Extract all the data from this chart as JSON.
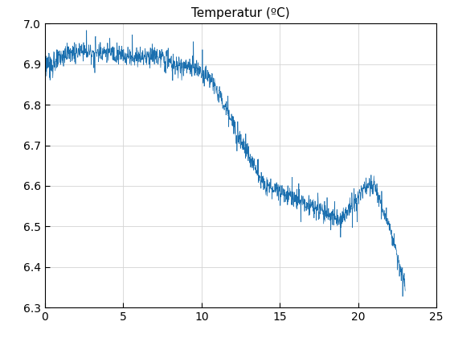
{
  "title": "Temperatur (ºC)",
  "xlim": [
    0,
    25
  ],
  "ylim": [
    6.3,
    7.0
  ],
  "xticks": [
    0,
    5,
    10,
    15,
    20,
    25
  ],
  "yticks": [
    6.3,
    6.4,
    6.5,
    6.6,
    6.7,
    6.8,
    6.9,
    7.0
  ],
  "line_color": "#1a6faf",
  "line_width": 0.5,
  "n_points": 1440,
  "x_end": 23.0,
  "background_color": "#ffffff",
  "title_fontsize": 11,
  "tick_fontsize": 10
}
